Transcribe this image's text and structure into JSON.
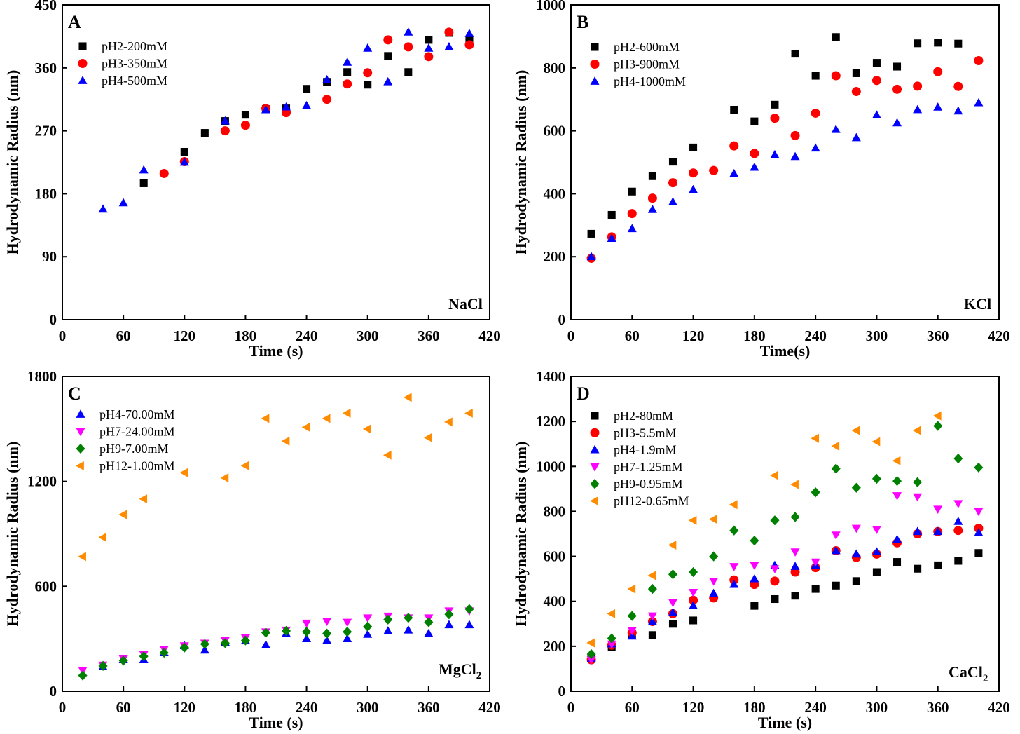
{
  "chart_data": [
    {
      "panel": "A",
      "type": "scatter",
      "annotation": "NaCl",
      "xlabel": "Time (s)",
      "ylabel": "Hydrodynamic Radius (nm)",
      "xlim": [
        0,
        420
      ],
      "ylim": [
        0,
        450
      ],
      "xticks": [
        0,
        60,
        120,
        180,
        240,
        300,
        360,
        420
      ],
      "yticks": [
        0,
        90,
        180,
        270,
        360,
        450
      ],
      "series": [
        {
          "name": "pH2-200mM",
          "marker": "square",
          "color": "#000000",
          "x": [
            80,
            120,
            140,
            160,
            180,
            200,
            220,
            240,
            260,
            280,
            300,
            320,
            340,
            360,
            380,
            400
          ],
          "y": [
            195,
            240,
            267,
            284,
            293,
            301,
            302,
            330,
            340,
            354,
            336,
            377,
            354,
            400,
            410,
            400
          ]
        },
        {
          "name": "pH3-350mM",
          "marker": "circle",
          "color": "#ff0000",
          "x": [
            100,
            120,
            160,
            180,
            200,
            220,
            260,
            280,
            300,
            320,
            340,
            360,
            380,
            400
          ],
          "y": [
            209,
            226,
            270,
            278,
            302,
            296,
            315,
            337,
            353,
            400,
            390,
            376,
            411,
            393
          ]
        },
        {
          "name": "pH4-500mM",
          "marker": "triangle-up",
          "color": "#0000ff",
          "x": [
            40,
            60,
            80,
            120,
            160,
            200,
            220,
            240,
            260,
            280,
            300,
            320,
            340,
            360,
            380,
            400
          ],
          "y": [
            158,
            167,
            214,
            225,
            284,
            300,
            304,
            306,
            343,
            368,
            388,
            340,
            411,
            388,
            390,
            409
          ]
        }
      ]
    },
    {
      "panel": "B",
      "type": "scatter",
      "annotation": "KCl",
      "xlabel": "Time(s)",
      "ylabel": "Hydrodynamic Radius (nm)",
      "xlim": [
        0,
        420
      ],
      "ylim": [
        0,
        1000
      ],
      "xticks": [
        0,
        60,
        120,
        180,
        240,
        300,
        360,
        420
      ],
      "yticks": [
        0,
        200,
        400,
        600,
        800,
        1000
      ],
      "series": [
        {
          "name": "pH2-600mM",
          "marker": "square",
          "color": "#000000",
          "x": [
            20,
            40,
            60,
            80,
            100,
            120,
            160,
            180,
            200,
            220,
            240,
            260,
            280,
            300,
            320,
            340,
            360,
            380
          ],
          "y": [
            273,
            333,
            407,
            456,
            502,
            547,
            667,
            630,
            683,
            845,
            775,
            898,
            783,
            816,
            804,
            878,
            880,
            877
          ]
        },
        {
          "name": "pH3-900mM",
          "marker": "circle",
          "color": "#ff0000",
          "x": [
            20,
            40,
            60,
            80,
            100,
            120,
            140,
            160,
            180,
            200,
            220,
            240,
            260,
            280,
            300,
            320,
            340,
            360,
            380,
            400
          ],
          "y": [
            195,
            263,
            337,
            386,
            435,
            466,
            474,
            552,
            528,
            640,
            585,
            656,
            775,
            725,
            760,
            732,
            742,
            788,
            741,
            823
          ]
        },
        {
          "name": "pH4-1000mM",
          "marker": "triangle-up",
          "color": "#0000ff",
          "x": [
            20,
            40,
            60,
            80,
            100,
            120,
            160,
            180,
            200,
            220,
            240,
            260,
            280,
            300,
            320,
            340,
            360,
            380,
            400
          ],
          "y": [
            200,
            258,
            289,
            350,
            374,
            413,
            464,
            484,
            524,
            518,
            545,
            604,
            578,
            650,
            625,
            667,
            675,
            663,
            689
          ]
        }
      ]
    },
    {
      "panel": "C",
      "type": "scatter",
      "annotation": "MgCl",
      "annotation_subscript": "2",
      "xlabel": "Time (s)",
      "ylabel": "Hydrodynamic Radius (nm)",
      "xlim": [
        0,
        420
      ],
      "ylim": [
        0,
        1800
      ],
      "xticks": [
        0,
        60,
        120,
        180,
        240,
        300,
        360,
        420
      ],
      "yticks": [
        0,
        600,
        1200,
        1800
      ],
      "series": [
        {
          "name": "pH4-70.00mM",
          "marker": "triangle-up",
          "color": "#0000ff",
          "x": [
            40,
            60,
            80,
            100,
            120,
            140,
            160,
            180,
            200,
            220,
            240,
            260,
            280,
            300,
            320,
            340,
            360,
            380,
            400
          ],
          "y": [
            140,
            180,
            180,
            220,
            260,
            235,
            280,
            290,
            265,
            330,
            300,
            290,
            300,
            325,
            345,
            350,
            330,
            380,
            380
          ]
        },
        {
          "name": "pH7-24.00mM",
          "marker": "triangle-down",
          "color": "#ff00ff",
          "x": [
            20,
            40,
            60,
            80,
            100,
            120,
            140,
            160,
            180,
            200,
            220,
            240,
            260,
            280,
            300,
            320,
            340,
            360,
            380,
            400
          ],
          "y": [
            120,
            150,
            185,
            210,
            240,
            260,
            275,
            290,
            305,
            340,
            350,
            390,
            400,
            395,
            420,
            430,
            420,
            420,
            460,
            460
          ]
        },
        {
          "name": "pH9-7.00mM",
          "marker": "diamond",
          "color": "#008000",
          "x": [
            20,
            40,
            60,
            80,
            100,
            120,
            140,
            160,
            180,
            200,
            220,
            240,
            260,
            280,
            300,
            320,
            340,
            360,
            380,
            400
          ],
          "y": [
            90,
            145,
            175,
            200,
            220,
            250,
            270,
            275,
            290,
            335,
            345,
            340,
            330,
            340,
            370,
            410,
            420,
            395,
            440,
            470
          ]
        },
        {
          "name": "pH12-1.00mM",
          "marker": "triangle-left",
          "color": "#ff8c00",
          "x": [
            20,
            40,
            60,
            80,
            120,
            160,
            180,
            200,
            220,
            240,
            260,
            280,
            300,
            320,
            340,
            360,
            380,
            400
          ],
          "y": [
            770,
            880,
            1010,
            1100,
            1250,
            1220,
            1290,
            1560,
            1430,
            1510,
            1560,
            1590,
            1500,
            1350,
            1680,
            1450,
            1540,
            1590
          ]
        }
      ]
    },
    {
      "panel": "D",
      "type": "scatter",
      "annotation": "CaCl",
      "annotation_subscript": "2",
      "xlabel": "Time (s)",
      "ylabel": "Hydrodynamic Radius (nm)",
      "xlim": [
        0,
        420
      ],
      "ylim": [
        0,
        1400
      ],
      "xticks": [
        0,
        60,
        120,
        180,
        240,
        300,
        360,
        420
      ],
      "yticks": [
        0,
        200,
        400,
        600,
        800,
        1000,
        1200,
        1400
      ],
      "series": [
        {
          "name": "pH2-80mM",
          "marker": "square",
          "color": "#000000",
          "x": [
            20,
            40,
            60,
            80,
            100,
            120,
            180,
            200,
            220,
            240,
            260,
            280,
            300,
            320,
            340,
            360,
            380,
            400
          ],
          "y": [
            150,
            195,
            250,
            250,
            300,
            315,
            380,
            410,
            425,
            455,
            470,
            490,
            530,
            575,
            545,
            560,
            580,
            615
          ]
        },
        {
          "name": "pH3-5.5mM",
          "marker": "circle",
          "color": "#ff0000",
          "x": [
            20,
            40,
            60,
            80,
            100,
            120,
            140,
            160,
            180,
            200,
            220,
            240,
            260,
            280,
            300,
            320,
            340,
            360,
            380,
            400
          ],
          "y": [
            140,
            205,
            260,
            310,
            345,
            405,
            415,
            495,
            475,
            490,
            530,
            550,
            625,
            595,
            610,
            660,
            700,
            710,
            715,
            725
          ]
        },
        {
          "name": "pH4-1.9mM",
          "marker": "triangle-up",
          "color": "#0000ff",
          "x": [
            20,
            40,
            60,
            80,
            100,
            120,
            140,
            160,
            180,
            200,
            220,
            240,
            260,
            280,
            300,
            320,
            340,
            360,
            380,
            400
          ],
          "y": [
            145,
            210,
            245,
            310,
            350,
            380,
            435,
            475,
            500,
            560,
            555,
            560,
            625,
            610,
            620,
            675,
            710,
            710,
            755,
            705
          ]
        },
        {
          "name": "pH7-1.25mM",
          "marker": "triangle-down",
          "color": "#ff00ff",
          "x": [
            20,
            40,
            60,
            80,
            100,
            120,
            140,
            160,
            180,
            200,
            220,
            240,
            260,
            280,
            300,
            320,
            340,
            360,
            380,
            400
          ],
          "y": [
            140,
            210,
            270,
            335,
            395,
            440,
            490,
            555,
            560,
            545,
            620,
            575,
            695,
            725,
            720,
            870,
            865,
            810,
            835,
            800
          ]
        },
        {
          "name": "pH9-0.95mM",
          "marker": "diamond",
          "color": "#008000",
          "x": [
            20,
            40,
            60,
            80,
            100,
            120,
            140,
            160,
            180,
            200,
            220,
            240,
            260,
            280,
            300,
            320,
            340,
            360,
            380,
            400
          ],
          "y": [
            165,
            235,
            335,
            455,
            520,
            530,
            600,
            715,
            670,
            760,
            775,
            885,
            990,
            905,
            945,
            935,
            930,
            1180,
            1035,
            995
          ]
        },
        {
          "name": "pH12-0.65mM",
          "marker": "triangle-left",
          "color": "#ff8c00",
          "x": [
            20,
            40,
            60,
            80,
            100,
            120,
            140,
            160,
            200,
            220,
            240,
            260,
            280,
            300,
            320,
            340,
            360
          ],
          "y": [
            215,
            345,
            455,
            515,
            650,
            760,
            765,
            830,
            960,
            920,
            1125,
            1090,
            1160,
            1110,
            1025,
            1160,
            1225
          ]
        }
      ]
    }
  ]
}
